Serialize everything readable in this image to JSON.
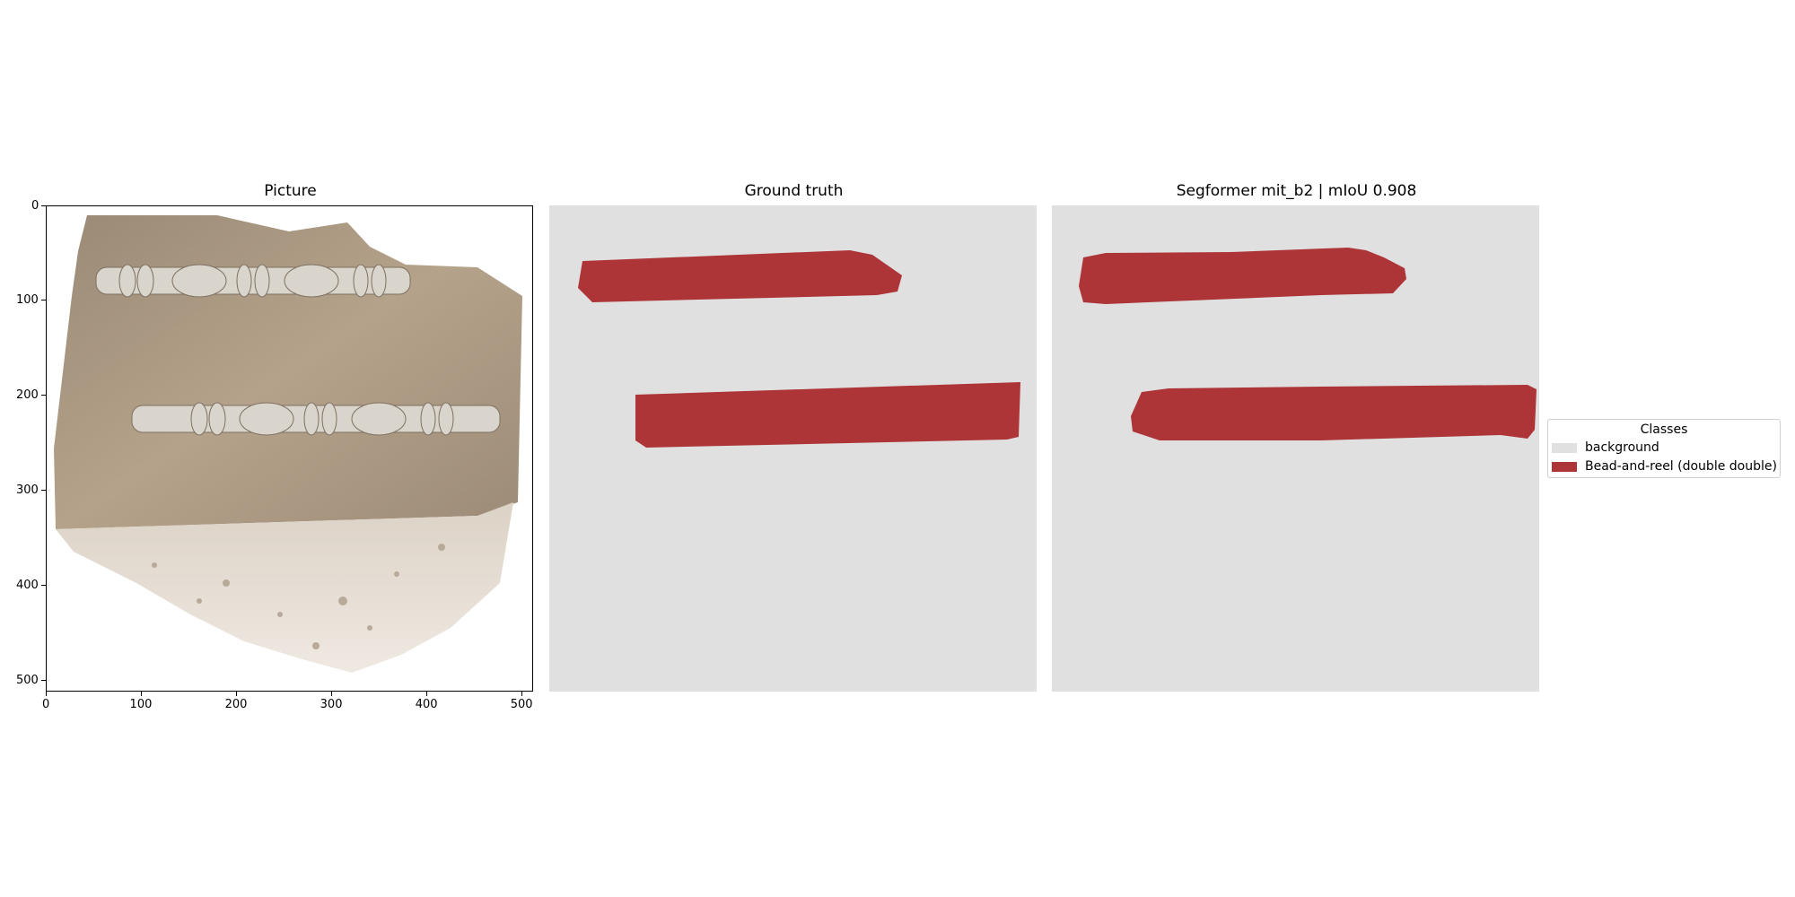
{
  "panels": {
    "picture_title": "Picture",
    "ground_truth_title": "Ground truth",
    "prediction_title": "Segformer mit_b2 | mIoU 0.908"
  },
  "axes": {
    "x_ticks": [
      "0",
      "100",
      "200",
      "300",
      "400",
      "500"
    ],
    "y_ticks": [
      "0",
      "100",
      "200",
      "300",
      "400",
      "500"
    ]
  },
  "legend": {
    "title": "Classes",
    "items": [
      {
        "label": "background",
        "color": "#e0e0e0"
      },
      {
        "label": "Bead-and-reel (double double)",
        "color": "#ad3437"
      }
    ]
  },
  "colors": {
    "mask_background": "#e0e0e0",
    "mask_class": "#ad3437"
  }
}
